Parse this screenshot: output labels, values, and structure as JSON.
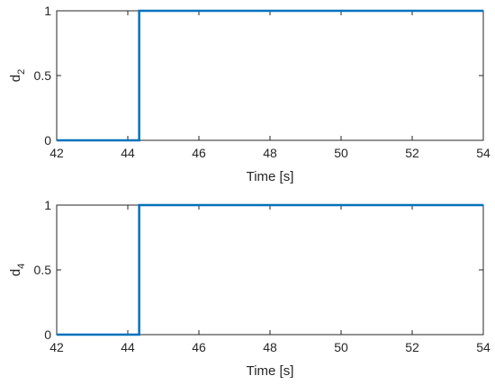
{
  "chart_data": [
    {
      "type": "line",
      "title": "",
      "xlabel": "Time [s]",
      "ylabel": "d",
      "ylabel_sub": "2",
      "xlim": [
        42,
        54
      ],
      "ylim": [
        0,
        1
      ],
      "xticks": [
        42,
        44,
        46,
        48,
        50,
        52,
        54
      ],
      "yticks": [
        0,
        0.5,
        1
      ],
      "grid": false,
      "color": "#0072BD",
      "series": [
        {
          "x": [
            42,
            44.32,
            44.32,
            54
          ],
          "y": [
            0,
            0,
            1,
            1
          ]
        }
      ]
    },
    {
      "type": "line",
      "title": "",
      "xlabel": "Time [s]",
      "ylabel": "d",
      "ylabel_sub": "4",
      "xlim": [
        42,
        54
      ],
      "ylim": [
        0,
        1
      ],
      "xticks": [
        42,
        44,
        46,
        48,
        50,
        52,
        54
      ],
      "yticks": [
        0,
        0.5,
        1
      ],
      "grid": false,
      "color": "#0072BD",
      "series": [
        {
          "x": [
            42,
            44.32,
            44.32,
            54
          ],
          "y": [
            0,
            0,
            1,
            1
          ]
        }
      ]
    }
  ]
}
